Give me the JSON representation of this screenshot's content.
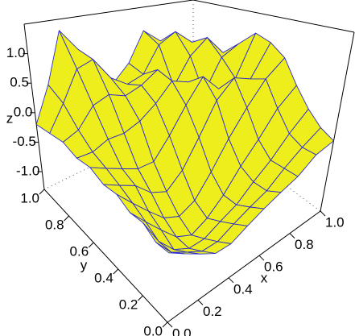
{
  "chart_data": {
    "type": "surface",
    "xlabel": "x",
    "ylabel": "y",
    "zlabel": "z",
    "x": [
      0,
      0.1,
      0.2,
      0.3,
      0.4,
      0.5,
      0.6,
      0.7,
      0.8,
      0.9,
      1
    ],
    "y": [
      0,
      0.1,
      0.2,
      0.3,
      0.4,
      0.5,
      0.6,
      0.7,
      0.8,
      0.9,
      1
    ],
    "z": [
      [
        -0.6,
        -0.7,
        -0.8,
        -0.9,
        -0.9,
        -0.8,
        -0.7,
        -0.6,
        -0.5,
        -0.3,
        -0.2
      ],
      [
        -0.6,
        -0.8,
        -0.9,
        -1.0,
        -1.0,
        -0.9,
        -0.8,
        -0.7,
        -0.5,
        -0.3,
        -0.1
      ],
      [
        -0.5,
        -0.8,
        -1.0,
        -1.1,
        -1.1,
        -1.0,
        -0.9,
        -0.7,
        -0.5,
        -0.2,
        0.1
      ],
      [
        -0.5,
        -0.7,
        -0.9,
        -1.1,
        -1.2,
        -1.1,
        -0.9,
        -0.6,
        -0.3,
        0.1,
        0.4
      ],
      [
        -0.4,
        -0.6,
        -0.8,
        -1.0,
        -1.1,
        -1.0,
        -0.7,
        -0.3,
        0.1,
        0.5,
        0.8
      ],
      [
        -0.4,
        -0.5,
        -0.6,
        -0.8,
        -0.9,
        -0.7,
        -0.3,
        0.2,
        0.5,
        0.4,
        1.0
      ],
      [
        -0.3,
        -0.4,
        -0.5,
        -0.6,
        -0.6,
        -0.3,
        0.1,
        0.5,
        0.2,
        0.3,
        1.1
      ],
      [
        -0.3,
        -0.3,
        -0.2,
        -0.2,
        -0.1,
        0.1,
        0.4,
        0.3,
        0.0,
        0.6,
        0.8
      ],
      [
        -0.2,
        -0.1,
        0.2,
        0.3,
        0.2,
        0.3,
        0.5,
        0.1,
        0.6,
        0.9,
        0.5
      ],
      [
        -0.2,
        0.2,
        0.7,
        0.8,
        0.4,
        0.2,
        0.3,
        0.8,
        1.0,
        0.7,
        0.3
      ],
      [
        -0.2,
        0.4,
        1.3,
        0.9,
        0.3,
        0.1,
        0.4,
        1.0,
        0.7,
        0.4,
        0.2
      ]
    ],
    "xlim": [
      0,
      1
    ],
    "ylim": [
      0,
      1
    ],
    "zlim": [
      -1.3,
      1.5
    ],
    "xticks": [
      {
        "value": 0,
        "label": "0.0"
      },
      0.2,
      0.4,
      0.6,
      0.8,
      {
        "value": 1,
        "label": "1.0"
      }
    ],
    "yticks": [
      {
        "value": 0,
        "label": "0.0"
      },
      0.2,
      0.4,
      0.6,
      0.8,
      {
        "value": 1,
        "label": "1.0"
      }
    ],
    "zticks": [
      {
        "value": -1,
        "label": "-1.0"
      },
      -0.5,
      {
        "value": 0,
        "label": "0.0"
      },
      0.5,
      {
        "value": 1,
        "label": "1.0"
      }
    ],
    "color": "#eeee1c",
    "edge_color": "#2a2ad0"
  }
}
